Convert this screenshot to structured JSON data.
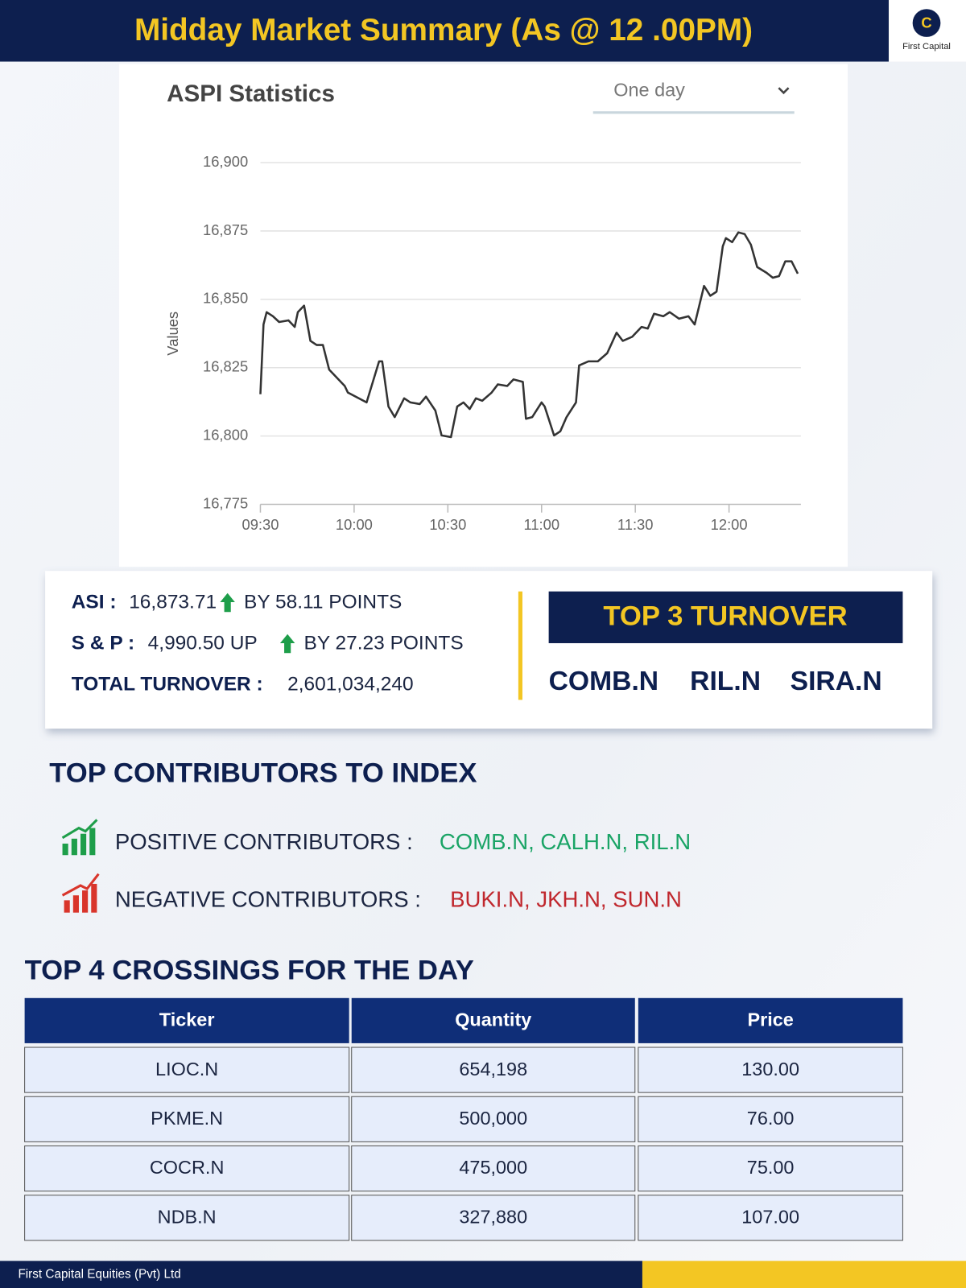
{
  "header": {
    "title": "Midday Market Summary (As @ 12 .00PM)",
    "logo_text": "First Capital"
  },
  "chart_data": {
    "type": "line",
    "title": "ASPI Statistics",
    "period": "One day",
    "ylabel": "Values",
    "x": [
      "09:30",
      "09:31",
      "09:32",
      "09:34",
      "09:36",
      "09:39",
      "09:41",
      "09:42",
      "09:44",
      "09:46",
      "09:48",
      "09:50",
      "09:52",
      "09:55",
      "09:57",
      "09:58",
      "10:01",
      "10:04",
      "10:06",
      "10:08",
      "10:09",
      "10:11",
      "10:13",
      "10:16",
      "10:18",
      "10:21",
      "10:23",
      "10:26",
      "10:28",
      "10:31",
      "10:33",
      "10:35",
      "10:37",
      "10:39",
      "10:41",
      "10:44",
      "10:46",
      "10:49",
      "10:51",
      "10:54",
      "10:55",
      "10:57",
      "11:00",
      "11:01",
      "11:04",
      "11:06",
      "11:08",
      "11:11",
      "11:12",
      "11:15",
      "11:18",
      "11:21",
      "11:24",
      "11:26",
      "11:29",
      "11:32",
      "11:34",
      "11:36",
      "11:39",
      "11:41",
      "11:44",
      "11:47",
      "11:49",
      "11:52",
      "11:54",
      "11:56",
      "11:58",
      "11:59",
      "12:01",
      "12:03",
      "12:05",
      "12:07",
      "12:09",
      "12:12",
      "12:14",
      "12:16",
      "12:18",
      "12:20",
      "12:22"
    ],
    "values": [
      16815.3,
      16840.8,
      16845.3,
      16843.8,
      16841.7,
      16842.3,
      16839.9,
      16845.3,
      16847.7,
      16834.8,
      16833.3,
      16833.3,
      16824.3,
      16820.7,
      16818.3,
      16815.9,
      16814.1,
      16812.3,
      16819.8,
      16827.3,
      16827.3,
      16810.8,
      16806.9,
      16813.8,
      16812.3,
      16811.7,
      16814.4,
      16809.3,
      16800.2,
      16799.6,
      16810.8,
      16812.3,
      16809.9,
      16813.8,
      16812.9,
      16815.9,
      16818.9,
      16818.3,
      16820.7,
      16819.8,
      16806.3,
      16806.9,
      16812.3,
      16810.8,
      16800.2,
      16801.7,
      16806.9,
      16812.3,
      16825.8,
      16827.3,
      16827.3,
      16830.3,
      16837.8,
      16834.8,
      16836.3,
      16839.9,
      16839.3,
      16844.7,
      16843.8,
      16845.3,
      16842.9,
      16843.8,
      16840.8,
      16854.9,
      16851.3,
      16852.8,
      16869.4,
      16872.4,
      16870.9,
      16874.5,
      16873.9,
      16870,
      16861.8,
      16859.7,
      16857.9,
      16858.5,
      16863.9,
      16863.9,
      16859.4
    ],
    "color": "#333333",
    "xlim": [
      "09:30",
      "12:23"
    ],
    "xticks": [
      "09:30",
      "10:00",
      "10:30",
      "11:00",
      "11:30",
      "12:00"
    ],
    "ylim": [
      16775,
      16900
    ],
    "yticks": [
      {
        "value": 16775,
        "label": "16,775"
      },
      {
        "value": 16800,
        "label": "16,800"
      },
      {
        "value": 16825,
        "label": "16,825"
      },
      {
        "value": 16850,
        "label": "16,850"
      },
      {
        "value": 16875,
        "label": "16,875"
      },
      {
        "value": 16900,
        "label": "16,900"
      }
    ],
    "grid": true
  },
  "summary": {
    "asi": {
      "label": "ASI :",
      "value": "16,873.71",
      "change": "BY 58.11 POINTS"
    },
    "sp": {
      "label": "S & P :",
      "value": "4,990.50 UP",
      "change": "BY 27.23 POINTS"
    },
    "turnover": {
      "label": "TOTAL TURNOVER :",
      "value": "2,601,034,240"
    }
  },
  "top_turnover": {
    "title": "TOP 3 TURNOVER",
    "tickers": [
      "COMB.N",
      "RIL.N",
      "SIRA.N"
    ]
  },
  "contributors": {
    "title": "TOP CONTRIBUTORS TO INDEX",
    "positive": {
      "label": "POSITIVE CONTRIBUTORS :",
      "names": "COMB.N, CALH.N, RIL.N"
    },
    "negative": {
      "label": "NEGATIVE CONTRIBUTORS :",
      "names": "BUKI.N, JKH.N, SUN.N"
    }
  },
  "crossings": {
    "title": "TOP 4 CROSSINGS FOR THE DAY",
    "columns": [
      "Ticker",
      "Quantity",
      "Price"
    ],
    "rows": [
      [
        "LIOC.N",
        "654,198",
        "130.00"
      ],
      [
        "PKME.N",
        "500,000",
        "76.00"
      ],
      [
        "COCR.N",
        "475,000",
        "75.00"
      ],
      [
        "NDB.N",
        "327,880",
        "107.00"
      ]
    ]
  },
  "footer": {
    "text": "First Capital Equities (Pvt) Ltd"
  }
}
